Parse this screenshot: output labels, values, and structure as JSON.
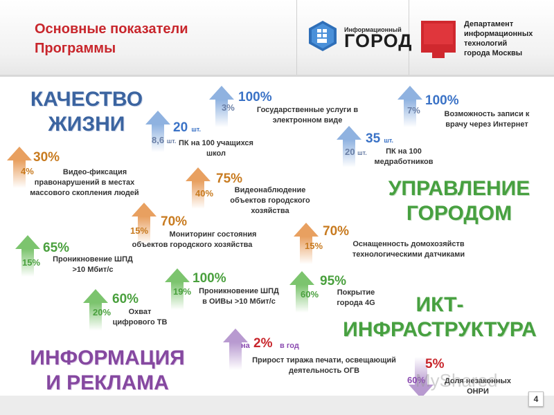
{
  "header": {
    "title_line1": "Основные показатели",
    "title_line2": "Программы",
    "logo1_small": "Информационный",
    "logo1_big": "ГОРОД",
    "logo2_line1": "Департамент",
    "logo2_line2": "информационных",
    "logo2_line3": "технологий",
    "logo2_line4": "города Москвы"
  },
  "categories": {
    "quality_line1": "КАЧЕСТВО",
    "quality_line2": "ЖИЗНИ",
    "management_line1": "УПРАВЛЕНИЕ",
    "management_line2": "ГОРОДОМ",
    "ict_line1": "ИКТ-",
    "ict_line2": "ИНФРАСТРУКТУРА",
    "info_line1": "ИНФОРМАЦИЯ",
    "info_line2": "И РЕКЛАМА"
  },
  "indicators": {
    "video_fix": {
      "from": "4%",
      "to": "30%",
      "desc": "Видео-фиксация правонарушений в местах массового скопления людей"
    },
    "pc_schools": {
      "from": "8,6",
      "from_unit": "шт.",
      "to": "20",
      "to_unit": "шт.",
      "desc": "ПК на 100 учащихся школ"
    },
    "gov_services": {
      "from": "3%",
      "to": "100%",
      "desc": "Государственные услуги в электронном виде"
    },
    "doctor": {
      "from": "7%",
      "to": "100%",
      "desc": "Возможность записи к врачу через Интернет"
    },
    "pc_medical": {
      "from": "20",
      "from_unit": "шт.",
      "to": "35",
      "to_unit": "шт.",
      "desc": "ПК на 100 медработников"
    },
    "video_surveillance": {
      "from": "40%",
      "to": "75%",
      "desc": "Видеонаблюдение объектов городского хозяйства"
    },
    "monitoring": {
      "from": "15%",
      "to": "70%",
      "desc": "Мониторинг состояния объектов городского хозяйства"
    },
    "households": {
      "from": "15%",
      "to": "70%",
      "desc": "Оснащенность домохозяйств технологическими датчиками"
    },
    "broadband": {
      "from": "15%",
      "to": "65%",
      "desc": "Проникновение ШПД >10 Мбит/с"
    },
    "broadband_oiv": {
      "from": "19%",
      "to": "100%",
      "desc": "Проникновение ШПД в ОИВы >10 Мбит/с"
    },
    "coverage_4g": {
      "from": "60%",
      "to": "95%",
      "desc": "Покрытие города 4G"
    },
    "digital_tv": {
      "from": "20%",
      "to": "60%",
      "desc": "Охват цифрового ТВ"
    },
    "print_growth": {
      "prefix": "на",
      "to": "2%",
      "suffix": "в год",
      "desc": "Прирост тиража печати, освещающий деятельность ОГВ"
    },
    "illegal": {
      "from": "60%",
      "to": "5%",
      "desc": "Доля незаконных ОНРИ"
    }
  },
  "colors": {
    "orange": "#e8a060",
    "green": "#7cc46e",
    "blue": "#8fb2e0",
    "purple": "#b89ad0",
    "title_red": "#c8262c"
  },
  "footer": {
    "page_number": "4",
    "watermark": "MyShared"
  }
}
